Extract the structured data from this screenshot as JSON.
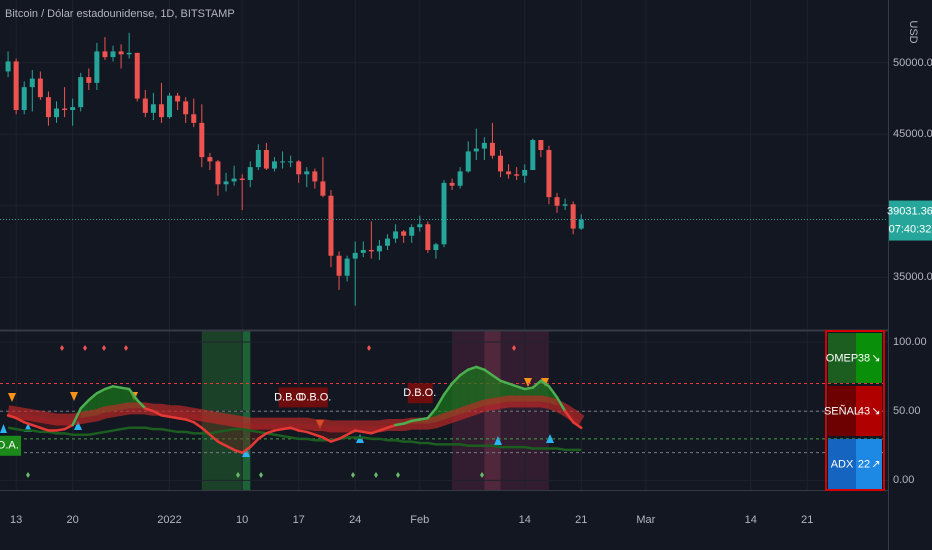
{
  "chart_data": [
    {
      "type": "candlestick",
      "title": "Bitcoin / Dólar estadounidense, 1D, BITSTAMP",
      "currency": "USD",
      "countdown": "07:40:32",
      "x": [
        "2021-12-12",
        "2021-12-13",
        "2021-12-14",
        "2021-12-15",
        "2021-12-16",
        "2021-12-17",
        "2021-12-18",
        "2021-12-19",
        "2021-12-20",
        "2021-12-21",
        "2021-12-22",
        "2021-12-23",
        "2021-12-24",
        "2021-12-25",
        "2021-12-26",
        "2021-12-27",
        "2021-12-28",
        "2021-12-29",
        "2021-12-30",
        "2021-12-31",
        "2022-01-01",
        "2022-01-02",
        "2022-01-03",
        "2022-01-04",
        "2022-01-05",
        "2022-01-06",
        "2022-01-07",
        "2022-01-08",
        "2022-01-09",
        "2022-01-10",
        "2022-01-11",
        "2022-01-12",
        "2022-01-13",
        "2022-01-14",
        "2022-01-15",
        "2022-01-16",
        "2022-01-17",
        "2022-01-18",
        "2022-01-19",
        "2022-01-20",
        "2022-01-21",
        "2022-01-22",
        "2022-01-23",
        "2022-01-24",
        "2022-01-25",
        "2022-01-26",
        "2022-01-27",
        "2022-01-28",
        "2022-01-29",
        "2022-01-30",
        "2022-01-31",
        "2022-02-01",
        "2022-02-02",
        "2022-02-03",
        "2022-02-04",
        "2022-02-05",
        "2022-02-06",
        "2022-02-07",
        "2022-02-08",
        "2022-02-09",
        "2022-02-10",
        "2022-02-11",
        "2022-02-12",
        "2022-02-13",
        "2022-02-14",
        "2022-02-15",
        "2022-02-16",
        "2022-02-17",
        "2022-02-18",
        "2022-02-19",
        "2022-02-20",
        "2022-02-21"
      ],
      "open": [
        49400,
        50100,
        46700,
        48300,
        48900,
        47600,
        46200,
        46800,
        46700,
        46900,
        49000,
        48600,
        50800,
        50400,
        50800,
        50600,
        50700,
        47500,
        46500,
        47100,
        46200,
        47700,
        47300,
        46400,
        45800,
        43400,
        43100,
        41500,
        41700,
        41900,
        41800,
        42700,
        43900,
        42600,
        43100,
        43100,
        43100,
        42200,
        42400,
        41700,
        40700,
        36500,
        35100,
        36300,
        36700,
        36900,
        36800,
        37200,
        37700,
        38200,
        37900,
        38500,
        38700,
        36900,
        37300,
        41600,
        41400,
        42400,
        43800,
        44000,
        44400,
        43500,
        42400,
        42200,
        42100,
        42500,
        44600,
        43900,
        40600,
        40000,
        40100,
        38400
      ],
      "high": [
        50800,
        50300,
        48700,
        49500,
        49400,
        48000,
        47300,
        48300,
        47500,
        49300,
        49600,
        51400,
        51800,
        51200,
        51300,
        52100,
        50700,
        48100,
        47900,
        48600,
        47900,
        47900,
        47600,
        47500,
        47100,
        43700,
        43200,
        42300,
        42800,
        42200,
        43100,
        44300,
        44400,
        43400,
        43800,
        43500,
        43200,
        42700,
        42600,
        43400,
        41100,
        36800,
        36500,
        37500,
        37500,
        38900,
        37600,
        38000,
        38700,
        38300,
        38700,
        39300,
        38900,
        37400,
        41800,
        41900,
        42700,
        44500,
        45400,
        44800,
        45800,
        43900,
        42900,
        42700,
        42900,
        44700,
        44600,
        44200,
        40900,
        40500,
        40300,
        39400
      ],
      "low": [
        49000,
        46400,
        46400,
        46600,
        47400,
        45600,
        45800,
        46200,
        45600,
        46600,
        48100,
        48100,
        50200,
        50100,
        49600,
        50300,
        47300,
        46200,
        46000,
        45800,
        46100,
        46700,
        45800,
        45500,
        42700,
        42500,
        40700,
        41000,
        41400,
        39700,
        41300,
        42500,
        42500,
        42400,
        42600,
        42700,
        41600,
        41300,
        41200,
        40600,
        35700,
        34100,
        34700,
        33000,
        36400,
        36300,
        36200,
        36900,
        37400,
        37400,
        37400,
        38200,
        36700,
        36300,
        37100,
        41100,
        41200,
        42300,
        43200,
        43200,
        43300,
        42000,
        41900,
        41800,
        41600,
        42500,
        43400,
        40100,
        39500,
        39700,
        38000,
        38300
      ],
      "close": [
        50100,
        46700,
        48300,
        48900,
        47600,
        46200,
        46800,
        46700,
        46900,
        49000,
        48600,
        50800,
        50400,
        50800,
        50600,
        50700,
        47500,
        46500,
        47100,
        46200,
        47700,
        47300,
        46400,
        45800,
        43400,
        43100,
        41500,
        41700,
        41900,
        41800,
        42700,
        43900,
        42600,
        43100,
        43100,
        43100,
        42200,
        42400,
        41700,
        40700,
        36500,
        35100,
        36300,
        36700,
        36900,
        36800,
        37200,
        37700,
        38200,
        37900,
        38500,
        38700,
        36900,
        37300,
        41600,
        41400,
        42400,
        43800,
        44000,
        44400,
        43500,
        42400,
        42200,
        42100,
        42500,
        44600,
        43900,
        40600,
        40000,
        40100,
        38400,
        39031.36
      ],
      "up_color": "#26a69a",
      "down_color": "#ef5350",
      "xlim": [
        "2021-12-11",
        "2022-03-31"
      ],
      "xticks": [
        {
          "value": "2021-12-13",
          "label": "13"
        },
        {
          "value": "2021-12-20",
          "label": "20"
        },
        {
          "value": "2022-01-01",
          "label": "2022"
        },
        {
          "value": "2022-01-10",
          "label": "10"
        },
        {
          "value": "2022-01-17",
          "label": "17"
        },
        {
          "value": "2022-01-24",
          "label": "24"
        },
        {
          "value": "2022-02-01",
          "label": "Feb"
        },
        {
          "value": "2022-02-14",
          "label": "14"
        },
        {
          "value": "2022-02-21",
          "label": "21"
        },
        {
          "value": "2022-03-01",
          "label": "Mar"
        },
        {
          "value": "2022-03-14",
          "label": "14"
        },
        {
          "value": "2022-03-21",
          "label": "21"
        }
      ],
      "ylim": [
        31300,
        54400
      ],
      "yticks": [
        {
          "value": 35000,
          "label": "35000.00"
        },
        {
          "value": 40000,
          "label": "40000.00"
        },
        {
          "value": 45000,
          "label": "45000.00"
        },
        {
          "value": 50000,
          "label": "50000.00"
        }
      ],
      "grid": true
    },
    {
      "type": "line",
      "series": [
        {
          "name": "OMEP",
          "color": "#4caf50",
          "below_color": "#e53935",
          "trend": "↘",
          "table_colors": [
            "#1b5e20",
            "#0a8f0a"
          ],
          "values": [
            47,
            45,
            42,
            40,
            38,
            36,
            36,
            37,
            40,
            52,
            58,
            63,
            66,
            68,
            67,
            66,
            58,
            52,
            50,
            47,
            46,
            45,
            44,
            42,
            38,
            33,
            28,
            25,
            22,
            20,
            24,
            30,
            34,
            36,
            37,
            38,
            36,
            35,
            33,
            31,
            28,
            30,
            33,
            36,
            35,
            34,
            36,
            38,
            40,
            41,
            43,
            44,
            45,
            52,
            62,
            70,
            76,
            80,
            82,
            80,
            76,
            72,
            70,
            68,
            66,
            67,
            72,
            68,
            60,
            50,
            42,
            38
          ]
        },
        {
          "name": "SEÑAL",
          "color": "#c62828",
          "trend": "↘",
          "table_colors": [
            "#6d0000",
            "#b00000"
          ],
          "values": [
            50,
            49,
            48,
            47,
            46,
            45,
            44,
            44,
            44,
            45,
            46,
            47,
            49,
            50,
            51,
            52,
            52,
            52,
            51,
            51,
            50,
            50,
            49,
            48,
            47,
            46,
            45,
            44,
            43,
            42,
            41,
            41,
            41,
            41,
            41,
            41,
            41,
            41,
            40,
            40,
            39,
            39,
            39,
            39,
            39,
            39,
            39,
            40,
            40,
            40,
            41,
            41,
            41,
            42,
            44,
            46,
            48,
            50,
            52,
            54,
            55,
            56,
            57,
            57,
            57,
            57,
            57,
            56,
            54,
            51,
            47,
            43
          ]
        },
        {
          "name": "ADX",
          "color": "#1b5e20",
          "trend": "↗",
          "table_colors": [
            "#1565c0",
            "#1e88e5"
          ],
          "values": [
            38,
            37,
            36,
            36,
            35,
            35,
            34,
            34,
            33,
            33,
            33,
            34,
            35,
            36,
            37,
            38,
            38,
            38,
            37,
            37,
            36,
            35,
            35,
            34,
            34,
            34,
            35,
            36,
            37,
            37,
            36,
            35,
            34,
            33,
            32,
            31,
            30,
            30,
            29,
            29,
            29,
            30,
            31,
            31,
            31,
            30,
            30,
            29,
            29,
            28,
            28,
            27,
            27,
            26,
            26,
            26,
            26,
            25,
            25,
            25,
            25,
            24,
            24,
            24,
            24,
            23,
            23,
            23,
            23,
            22,
            22,
            22
          ]
        }
      ],
      "ylim": [
        -7,
        108
      ],
      "yticks": [
        {
          "value": 0,
          "label": "0.00"
        },
        {
          "value": 50,
          "label": "50.00"
        },
        {
          "value": 100,
          "label": "100.00"
        }
      ],
      "levels": [
        {
          "value": 70,
          "color": "#e53935"
        },
        {
          "value": 50,
          "color": "#787b86"
        },
        {
          "value": 30,
          "color": "#43a047"
        },
        {
          "value": 20,
          "color": "#787b86"
        }
      ],
      "zones": [
        {
          "from": "2022-01-05",
          "to": "2022-01-11",
          "color": "#1e4d2b"
        },
        {
          "from": "2022-01-10",
          "to": "2022-01-11",
          "color": "#1f6b3a"
        },
        {
          "from": "2022-02-05",
          "to": "2022-02-17",
          "color": "#3a1f33"
        },
        {
          "from": "2022-02-09",
          "to": "2022-02-11",
          "color": "#5a2a40"
        }
      ],
      "annotations": [
        {
          "text": "D.B.O.",
          "x": "2022-01-16",
          "y": 60,
          "color": "#6d0d0d"
        },
        {
          "text": "D.B.O.",
          "x": "2022-01-19",
          "y": 60,
          "color": "#6d0d0d"
        },
        {
          "text": "D.B.O.",
          "x": "2022-02-01",
          "y": 63,
          "color": "#6d0d0d"
        },
        {
          "text": "D.A.",
          "x": "2021-12-12",
          "y": 25,
          "color": "#1b8a1b"
        }
      ]
    }
  ]
}
